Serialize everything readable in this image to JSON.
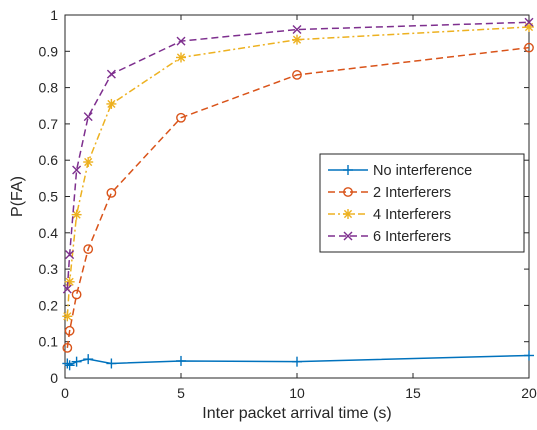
{
  "chart_data": {
    "type": "line",
    "title": "",
    "xlabel": "Inter packet arrival time (s)",
    "ylabel": "P(FA)",
    "xlim": [
      0,
      20
    ],
    "ylim": [
      0,
      1
    ],
    "xticks": [
      0,
      5,
      10,
      15,
      20
    ],
    "yticks": [
      0,
      0.1,
      0.2,
      0.3,
      0.4,
      0.5,
      0.6,
      0.7,
      0.8,
      0.9,
      1
    ],
    "xtick_labels": [
      "0",
      "5",
      "10",
      "15",
      "20"
    ],
    "ytick_labels": [
      "0",
      "0.1",
      "0.2",
      "0.3",
      "0.4",
      "0.5",
      "0.6",
      "0.7",
      "0.8",
      "0.9",
      "1"
    ],
    "grid": false,
    "box": true,
    "legend_location": "right",
    "series": [
      {
        "name": "No interference",
        "color": "#0072BD",
        "line_style": "solid",
        "marker": "plus",
        "x": [
          0.1,
          0.2,
          0.5,
          1,
          2,
          5,
          10,
          20
        ],
        "y": [
          0.04,
          0.035,
          0.045,
          0.052,
          0.04,
          0.047,
          0.045,
          0.062
        ]
      },
      {
        "name": "2 Interferers",
        "color": "#D95319",
        "line_style": "dashed",
        "marker": "circle",
        "x": [
          0.1,
          0.2,
          0.5,
          1,
          2,
          5,
          10,
          20
        ],
        "y": [
          0.083,
          0.13,
          0.23,
          0.355,
          0.51,
          0.717,
          0.835,
          0.91
        ]
      },
      {
        "name": "4 Interferers",
        "color": "#EDB120",
        "line_style": "dashdot",
        "marker": "asterisk",
        "x": [
          0.1,
          0.2,
          0.5,
          1,
          2,
          5,
          10,
          20
        ],
        "y": [
          0.17,
          0.265,
          0.45,
          0.595,
          0.755,
          0.883,
          0.932,
          0.967
        ]
      },
      {
        "name": "6 Interferers",
        "color": "#7E2F8E",
        "line_style": "dashed",
        "marker": "cross",
        "x": [
          0.1,
          0.2,
          0.5,
          1,
          2,
          5,
          10,
          20
        ],
        "y": [
          0.245,
          0.34,
          0.573,
          0.72,
          0.837,
          0.928,
          0.96,
          0.98
        ]
      }
    ]
  }
}
